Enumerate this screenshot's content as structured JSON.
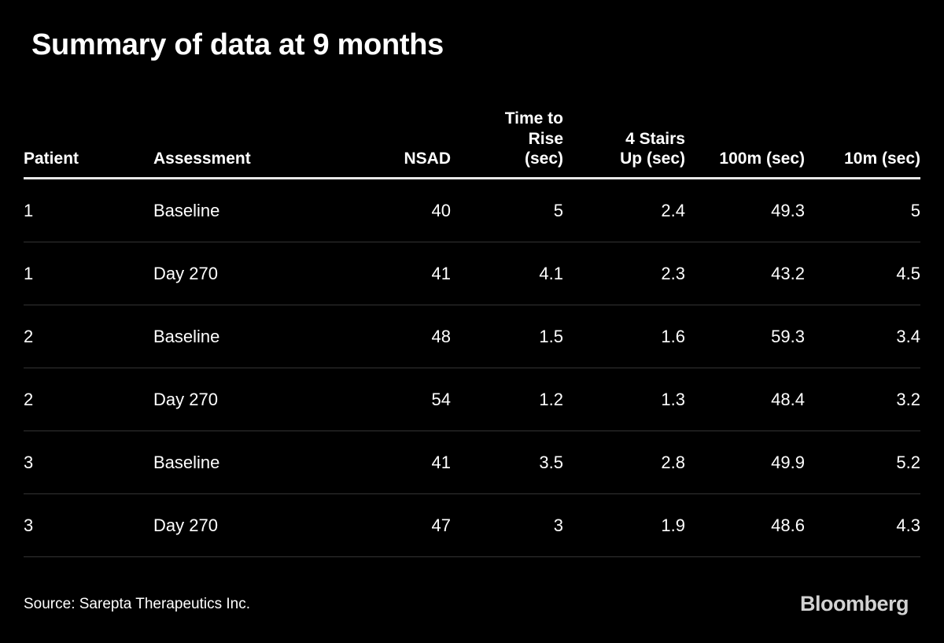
{
  "title": "Summary of data at 9 months",
  "table": {
    "header_labels": [
      "Patient",
      "Assessment",
      "NSAD",
      "Time to\nRise\n(sec)",
      "4 Stairs\nUp (sec)",
      "100m (sec)",
      "10m (sec)"
    ]
  },
  "footer": {
    "source": "Source: Sarepta Therapeutics Inc.",
    "brand": "Bloomberg"
  },
  "colors": {
    "background": "#000000",
    "text": "#ffffff",
    "header_rule": "#e8e8e8",
    "row_rule": "#333333",
    "brand_gray": "#d2d2d2"
  },
  "chart_data": {
    "type": "table",
    "title": "Summary of data at 9 months",
    "columns": [
      "Patient",
      "Assessment",
      "NSAD",
      "Time to Rise (sec)",
      "4 Stairs Up (sec)",
      "100m (sec)",
      "10m (sec)"
    ],
    "rows": [
      [
        1,
        "Baseline",
        40,
        5,
        2.4,
        49.3,
        5
      ],
      [
        1,
        "Day 270",
        41,
        4.1,
        2.3,
        43.2,
        4.5
      ],
      [
        2,
        "Baseline",
        48,
        1.5,
        1.6,
        59.3,
        3.4
      ],
      [
        2,
        "Day 270",
        54,
        1.2,
        1.3,
        48.4,
        3.2
      ],
      [
        3,
        "Baseline",
        41,
        3.5,
        2.8,
        49.9,
        5.2
      ],
      [
        3,
        "Day 270",
        47,
        3,
        1.9,
        48.6,
        4.3
      ]
    ],
    "source": "Source: Sarepta Therapeutics Inc.",
    "brand": "Bloomberg"
  }
}
